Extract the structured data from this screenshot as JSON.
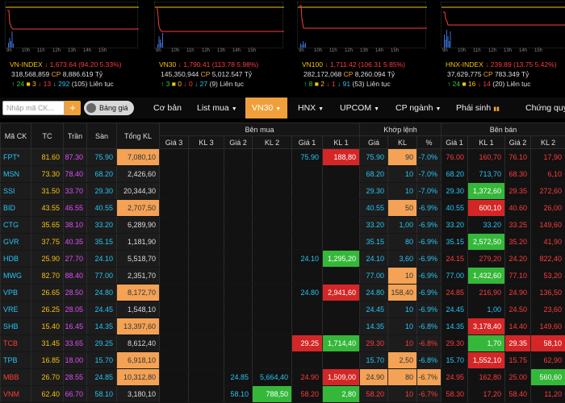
{
  "indices": [
    {
      "name": "VN-INDEX",
      "price": "1,673.64",
      "change": "(94.20 5.33%)",
      "volume": "318,568,859",
      "cp_label": "CP",
      "value": "8,886.619",
      "unit": "Tỷ",
      "up": "24",
      "ref": "3",
      "down": "13",
      "floor": "292",
      "unchanged": "(105)",
      "session": "Liên tục"
    },
    {
      "name": "VN30",
      "price": "1,790.41",
      "change": "(113.78 5.98%)",
      "volume": "145,350,944",
      "cp_label": "CP",
      "value": "5,012.547",
      "unit": "Tỷ",
      "up": "3",
      "ref": "0",
      "down": "0",
      "floor": "27",
      "unchanged": "(9)",
      "session": "Liên tục"
    },
    {
      "name": "VN100",
      "price": "1,711.42",
      "change": "(106.31 5.85%)",
      "volume": "282,172,068",
      "cp_label": "CP",
      "value": "8,260.094",
      "unit": "Tỷ",
      "up": "8",
      "ref": "2",
      "down": "1",
      "floor": "91",
      "unchanged": "(53)",
      "session": "Liên tục"
    },
    {
      "name": "HNX-INDEX",
      "price": "239.89",
      "change": "(13.75 5.42%)",
      "volume": "37,629,775",
      "cp_label": "CP",
      "value": "783.349",
      "unit": "Tỷ",
      "up": "24",
      "ref": "16",
      "down": "14",
      "floor": "",
      "unchanged": "(20)",
      "session": "Liên tục"
    }
  ],
  "time_labels": [
    "9h",
    "10h",
    "11h",
    "12h",
    "13h",
    "14h",
    "15h"
  ],
  "toolbar": {
    "search_placeholder": "Nhập mã CK...",
    "add": "+",
    "toggle": "Bảng giá",
    "tabs": [
      "Cơ bản",
      "List mua",
      "VN30",
      "HNX",
      "UPCOM",
      "CP ngành",
      "Phái sinh",
      "Chứng quy"
    ]
  },
  "headers": {
    "symbol": "Mã CK",
    "ref": "TC",
    "ceil": "Trần",
    "floor": "Sàn",
    "total": "Tổng KL",
    "buy": "Bên mua",
    "match": "Khớp lệnh",
    "sell": "Bên bán",
    "p3": "Giá 3",
    "v3": "KL 3",
    "p2": "Giá 2",
    "v2": "KL 2",
    "p1": "Giá 1",
    "v1": "KL 1",
    "mp": "Giá",
    "mv": "KL",
    "pct": "%",
    "sp1": "Giá 1",
    "sv1": "KL 1",
    "sp2": "Giá 2",
    "sv2": "KL 2"
  },
  "rows": [
    {
      "sym": "FPT*",
      "tc": "81.60",
      "tran": "87.30",
      "san": "75.90",
      "tong": "7,080,10",
      "g3": "",
      "k3": "",
      "g2": "",
      "k2": "",
      "g1": "75.90",
      "k1": "188,80",
      "mg": "75.90",
      "mk": "90",
      "pct": "-7.0%",
      "sg1": "76.00",
      "sk1": "160,70",
      "sg2": "76.10",
      "sk2": "17,90"
    },
    {
      "sym": "MSN",
      "tc": "73.30",
      "tran": "78.40",
      "san": "68.20",
      "tong": "2,426,60",
      "g3": "",
      "k3": "",
      "g2": "",
      "k2": "",
      "g1": "",
      "k1": "",
      "mg": "68.20",
      "mk": "10",
      "pct": "-7.0%",
      "sg1": "68.20",
      "sk1": "713,70",
      "sg2": "68.30",
      "sk2": "6,10"
    },
    {
      "sym": "SSI",
      "tc": "31.50",
      "tran": "33.70",
      "san": "29.30",
      "tong": "20,344,30",
      "g3": "",
      "k3": "",
      "g2": "",
      "k2": "",
      "g1": "",
      "k1": "",
      "mg": "29.30",
      "mk": "10",
      "pct": "-7.0%",
      "sg1": "29.30",
      "sk1": "1,372,60",
      "sg2": "29.35",
      "sk2": "272,60"
    },
    {
      "sym": "BID",
      "tc": "43.55",
      "tran": "46.55",
      "san": "40.55",
      "tong": "2,707,50",
      "g3": "",
      "k3": "",
      "g2": "",
      "k2": "",
      "g1": "",
      "k1": "",
      "mg": "40.55",
      "mk": "50",
      "pct": "-6.9%",
      "sg1": "40.55",
      "sk1": "600,10",
      "sg2": "40.60",
      "sk2": "26,00"
    },
    {
      "sym": "CTG",
      "tc": "35.65",
      "tran": "38.10",
      "san": "33.20",
      "tong": "6,289,90",
      "g3": "",
      "k3": "",
      "g2": "",
      "k2": "",
      "g1": "",
      "k1": "",
      "mg": "33.20",
      "mk": "1,00",
      "pct": "-6.9%",
      "sg1": "33.20",
      "sk1": "33.20",
      "sg2": "33.25",
      "sk2": "149,60"
    },
    {
      "sym": "GVR",
      "tc": "37.75",
      "tran": "40.35",
      "san": "35.15",
      "tong": "1,181,90",
      "g3": "",
      "k3": "",
      "g2": "",
      "k2": "",
      "g1": "",
      "k1": "",
      "mg": "35.15",
      "mk": "80",
      "pct": "-6.9%",
      "sg1": "35.15",
      "sk1": "2,572,50",
      "sg2": "35.20",
      "sk2": "41,90"
    },
    {
      "sym": "HDB",
      "tc": "25.90",
      "tran": "27.70",
      "san": "24.10",
      "tong": "5,518,70",
      "g3": "",
      "k3": "",
      "g2": "",
      "k2": "",
      "g1": "24.10",
      "k1": "1,295,20",
      "mg": "24.10",
      "mk": "3,60",
      "pct": "-6.9%",
      "sg1": "24.15",
      "sk1": "279,20",
      "sg2": "24.20",
      "sk2": "822,40"
    },
    {
      "sym": "MWG",
      "tc": "82.70",
      "tran": "88.40",
      "san": "77.00",
      "tong": "2,351,70",
      "g3": "",
      "k3": "",
      "g2": "",
      "k2": "",
      "g1": "",
      "k1": "",
      "mg": "77.00",
      "mk": "10",
      "pct": "-6.9%",
      "sg1": "77.00",
      "sk1": "1,432,60",
      "sg2": "77.10",
      "sk2": "53,20"
    },
    {
      "sym": "VPB",
      "tc": "26.65",
      "tran": "28.50",
      "san": "24.80",
      "tong": "8,172,70",
      "g3": "",
      "k3": "",
      "g2": "",
      "k2": "",
      "g1": "24.80",
      "k1": "2,941,60",
      "mg": "24.80",
      "mk": "158,40",
      "pct": "-6.9%",
      "sg1": "24.85",
      "sk1": "216,90",
      "sg2": "24.90",
      "sk2": "136,50"
    },
    {
      "sym": "VRE",
      "tc": "26.25",
      "tran": "28.05",
      "san": "24.45",
      "tong": "1,548,10",
      "g3": "",
      "k3": "",
      "g2": "",
      "k2": "",
      "g1": "",
      "k1": "",
      "mg": "24.45",
      "mk": "10",
      "pct": "-6.9%",
      "sg1": "24.45",
      "sk1": "1,00",
      "sg2": "24.50",
      "sk2": "23,60"
    },
    {
      "sym": "SHB",
      "tc": "15.40",
      "tran": "16.45",
      "san": "14.35",
      "tong": "13,397,60",
      "g3": "",
      "k3": "",
      "g2": "",
      "k2": "",
      "g1": "",
      "k1": "",
      "mg": "14.35",
      "mk": "10",
      "pct": "-6.8%",
      "sg1": "14.35",
      "sk1": "3,178,40",
      "sg2": "14.40",
      "sk2": "149,60"
    },
    {
      "sym": "TCB",
      "tc": "31.45",
      "tran": "33.65",
      "san": "29.25",
      "tong": "8,612,40",
      "g3": "",
      "k3": "",
      "g2": "",
      "k2": "",
      "g1": "29.25",
      "k1": "1,714,40",
      "mg": "29.30",
      "mk": "10",
      "pct": "-6.8%",
      "sg1": "29.30",
      "sk1": "1,70",
      "sg2": "29.35",
      "sk2": "58,10"
    },
    {
      "sym": "TPB",
      "tc": "16.85",
      "tran": "18.00",
      "san": "15.70",
      "tong": "6,918,10",
      "g3": "",
      "k3": "",
      "g2": "",
      "k2": "",
      "g1": "",
      "k1": "",
      "mg": "15.70",
      "mk": "2,50",
      "pct": "-6.8%",
      "sg1": "15.70",
      "sk1": "1,552,10",
      "sg2": "15.75",
      "sk2": "62,90"
    },
    {
      "sym": "MBB",
      "tc": "26.70",
      "tran": "28.55",
      "san": "24.85",
      "tong": "10,312,80",
      "g3": "",
      "k3": "",
      "g2": "24.85",
      "k2": "5,664,40",
      "g1": "24.90",
      "k1": "1,509,00",
      "mg": "24.90",
      "mk": "80",
      "pct": "-6.7%",
      "sg1": "24.95",
      "sk1": "162,80",
      "sg2": "25.00",
      "sk2": "560,60"
    },
    {
      "sym": "VNM",
      "tc": "62.40",
      "tran": "66.70",
      "san": "58.10",
      "tong": "3,180,10",
      "g3": "",
      "k3": "",
      "g2": "58.10",
      "k2": "788,50",
      "g1": "58.20",
      "k1": "2,80",
      "mg": "58.20",
      "mk": "10",
      "pct": "-6.7%",
      "sg1": "58.30",
      "sk1": "17,20",
      "sg2": "58.40",
      "sk2": "11,20"
    }
  ],
  "colors": {
    "accent": "#f0a03a",
    "ceiling": "#e34bff",
    "floor": "#27c5f5",
    "down": "#ff3b3b",
    "up": "#2ed13a",
    "ref": "#f5c311"
  }
}
